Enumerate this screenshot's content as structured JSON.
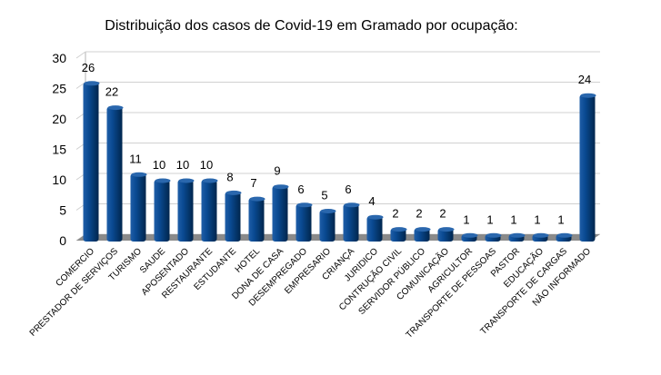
{
  "chart_data": {
    "type": "bar",
    "title": "Distribuição dos casos de Covid-19 em Gramado por ocupação:",
    "categories": [
      "COMERCIO",
      "PRESTADOR DE SERVIÇOS",
      "TURISMO",
      "SAUDE",
      "APOSENTADO",
      "RESTAURANTE",
      "ESTUDANTE",
      "HOTEL",
      "DONA DE CASA",
      "DESEMPREGADO",
      "EMPRESARIO",
      "CRIANÇA",
      "JURIDICO",
      "CONTRUÇÃO CIVIL",
      "SERVIDOR PÚBLICO",
      "COMUNICAÇÃO",
      "AGRICULTOR",
      "TRANSPORTE DE PESSOAS",
      "PASTOR",
      "EDUCAÇÃO",
      "TRANSPORTE DE CARGAS",
      "NÃO INFORMADO"
    ],
    "values": [
      26,
      22,
      11,
      10,
      10,
      10,
      8,
      7,
      9,
      6,
      5,
      6,
      4,
      2,
      2,
      2,
      1,
      1,
      1,
      1,
      1,
      24
    ],
    "yticks": [
      0,
      5,
      10,
      15,
      20,
      25,
      30
    ],
    "ylim": [
      0,
      30
    ],
    "grid": true,
    "bar_color": "#004586",
    "legend": "none"
  }
}
